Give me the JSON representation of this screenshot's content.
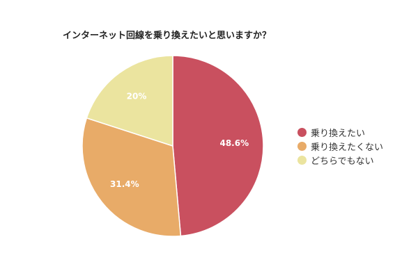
{
  "chart_data": {
    "type": "pie",
    "title": "インターネット回線を乗り換えたいと思いますか？",
    "categories": [
      "乗り換えたい",
      "乗り換えたくない",
      "どちらでもない"
    ],
    "values": [
      48.6,
      31.4,
      20
    ],
    "labels": [
      "48.6%",
      "31.4%",
      "20%"
    ],
    "colors": [
      "#c9505f",
      "#e8ab68",
      "#ebe49f"
    ],
    "legend_position": "right",
    "start_angle": "12 o'clock, clockwise"
  },
  "legend": {
    "items": [
      {
        "label": "乗り換えたい",
        "color": "#c9505f"
      },
      {
        "label": "乗り換えたくない",
        "color": "#e8ab68"
      },
      {
        "label": "どちらでもない",
        "color": "#ebe49f"
      }
    ]
  }
}
